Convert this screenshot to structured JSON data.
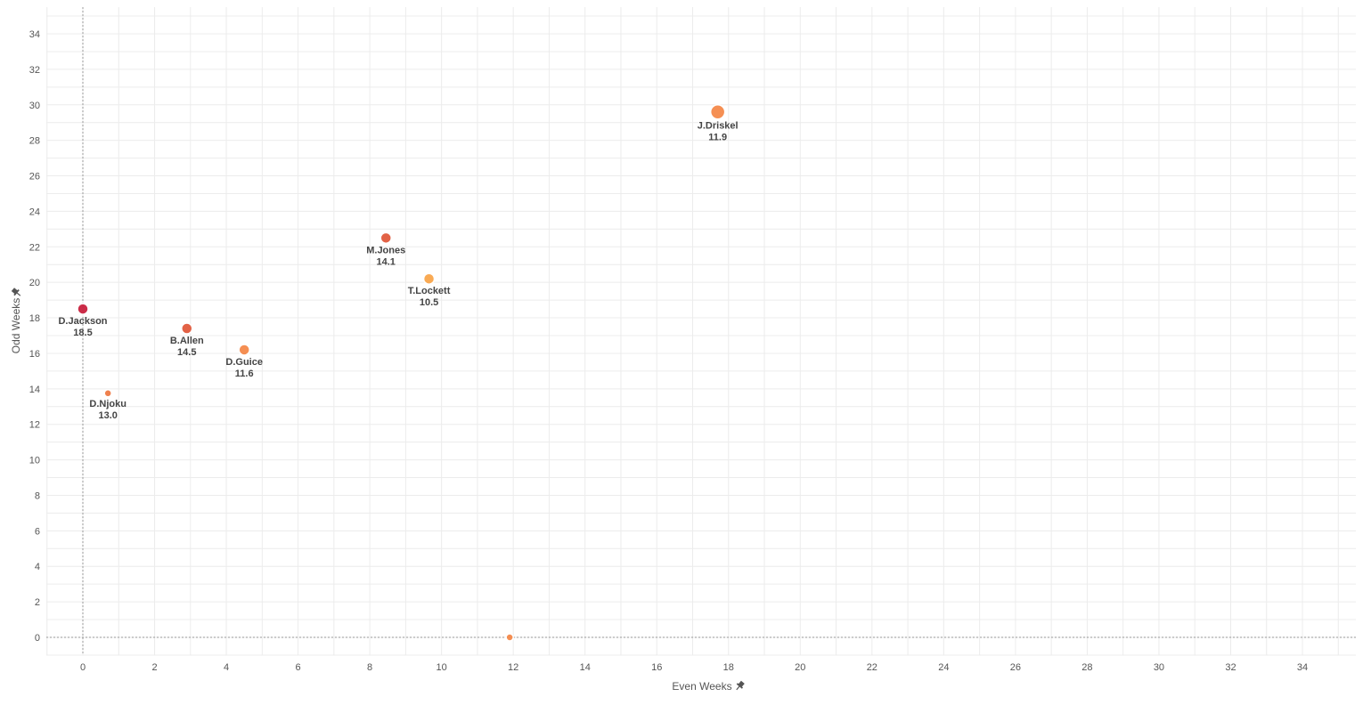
{
  "chart_data": {
    "type": "scatter",
    "xlabel": "Even Weeks",
    "ylabel": "Odd Weeks",
    "xlim": [
      -1,
      35.5
    ],
    "ylim": [
      -1,
      35.5
    ],
    "xticks": [
      0,
      2,
      4,
      6,
      8,
      10,
      12,
      14,
      16,
      18,
      20,
      22,
      24,
      26,
      28,
      30,
      32,
      34
    ],
    "yticks": [
      0,
      2,
      4,
      6,
      8,
      10,
      12,
      14,
      16,
      18,
      20,
      22,
      24,
      26,
      28,
      30,
      32,
      34
    ],
    "grid": true,
    "pin_icon": "pin-icon",
    "points": [
      {
        "name": "J.Driskel",
        "value": "11.9",
        "x": 17.7,
        "y": 29.6,
        "size": 8,
        "color": "#f4894a"
      },
      {
        "name": "M.Jones",
        "value": "14.1",
        "x": 8.45,
        "y": 22.5,
        "size": 6,
        "color": "#e05a3c"
      },
      {
        "name": "T.Lockett",
        "value": "10.5",
        "x": 9.65,
        "y": 20.2,
        "size": 6,
        "color": "#f9a54b"
      },
      {
        "name": "D.Jackson",
        "value": "18.5",
        "x": 0.0,
        "y": 18.5,
        "size": 6,
        "color": "#c8213e"
      },
      {
        "name": "B.Allen",
        "value": "14.5",
        "x": 2.9,
        "y": 17.4,
        "size": 6,
        "color": "#e05a3c"
      },
      {
        "name": "D.Guice",
        "value": "11.6",
        "x": 4.5,
        "y": 16.2,
        "size": 6,
        "color": "#f4894a"
      },
      {
        "name": "D.Njoku",
        "value": "13.0",
        "x": 0.7,
        "y": 13.75,
        "size": 4,
        "color": "#ee7a45"
      },
      {
        "name": "",
        "value": "",
        "x": 11.9,
        "y": 0.0,
        "size": 4,
        "color": "#f4894a"
      }
    ]
  }
}
